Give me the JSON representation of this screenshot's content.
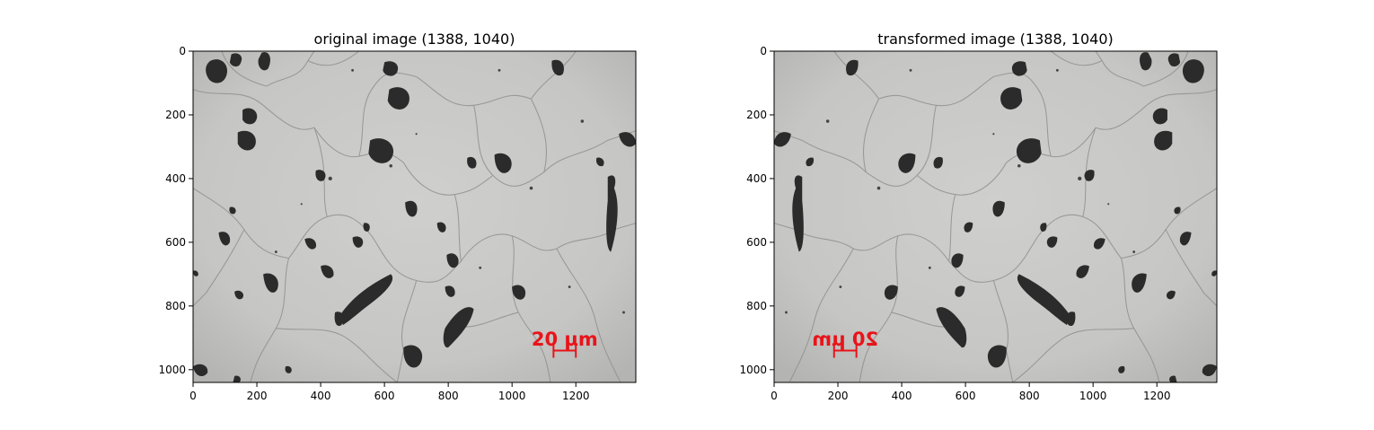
{
  "chart_data": [
    {
      "type": "image",
      "title": "original image (1388, 1040)",
      "xlim": [
        0,
        1388
      ],
      "ylim": [
        1040,
        0
      ],
      "x_ticks": [
        0,
        200,
        400,
        600,
        800,
        1000,
        1200
      ],
      "y_ticks": [
        0,
        200,
        400,
        600,
        800,
        1000
      ],
      "scale_bar": {
        "label": "20 µm",
        "mirrored": false
      },
      "flip_horizontal": false
    },
    {
      "type": "image",
      "title": "transformed image (1388, 1040)",
      "xlim": [
        0,
        1388
      ],
      "ylim": [
        1040,
        0
      ],
      "x_ticks": [
        0,
        200,
        400,
        600,
        800,
        1000,
        1200
      ],
      "y_ticks": [
        0,
        200,
        400,
        600,
        800,
        1000
      ],
      "scale_bar": {
        "label": "20 µm",
        "mirrored": true
      },
      "flip_horizontal": true
    }
  ],
  "colors": {
    "background": "#c9c9c7",
    "nodule": "#2b2b2b",
    "grain_boundary": "#8d8d8d",
    "scale_bar": "#e8141a"
  }
}
